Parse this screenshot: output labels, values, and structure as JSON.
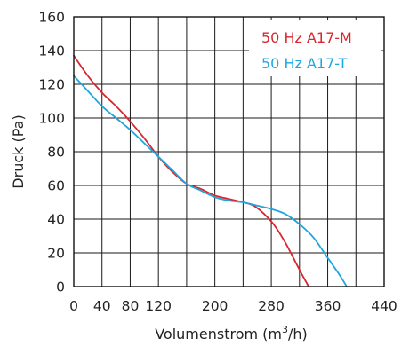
{
  "chart_data": {
    "type": "line",
    "xlabel_main": "Volumenstrom (m",
    "xlabel_sup": "3",
    "xlabel_tail": "/h)",
    "ylabel": "Druck (Pa)",
    "xlim": [
      0,
      440
    ],
    "ylim": [
      0,
      160
    ],
    "xticks": [
      0,
      40,
      80,
      120,
      200,
      280,
      360,
      440
    ],
    "yticks": [
      0,
      20,
      40,
      60,
      80,
      100,
      120,
      140,
      160
    ],
    "xgrid": [
      0,
      40,
      80,
      120,
      160,
      200,
      240,
      280,
      320,
      360,
      400,
      440
    ],
    "grid": true,
    "legend_position": "top-right",
    "series": [
      {
        "name": "50 Hz A17-M",
        "color": "#d7282f",
        "x": [
          0,
          20,
          40,
          60,
          80,
          100,
          120,
          140,
          160,
          180,
          200,
          220,
          240,
          255,
          270,
          285,
          300,
          315,
          325,
          333
        ],
        "y": [
          137,
          125,
          115,
          107,
          98,
          88,
          77,
          68,
          61,
          58,
          54,
          52,
          50,
          48,
          43,
          36,
          26,
          14,
          6,
          0
        ]
      },
      {
        "name": "50 Hz A17-T",
        "color": "#1ea6e0",
        "x": [
          0,
          20,
          40,
          60,
          80,
          100,
          120,
          140,
          160,
          180,
          200,
          220,
          240,
          260,
          280,
          300,
          320,
          340,
          360,
          375,
          387
        ],
        "y": [
          125,
          116,
          107,
          100,
          93,
          85,
          77,
          69,
          61,
          57,
          53,
          51,
          50,
          48,
          46,
          43,
          37,
          29,
          17,
          8,
          0
        ]
      }
    ]
  }
}
